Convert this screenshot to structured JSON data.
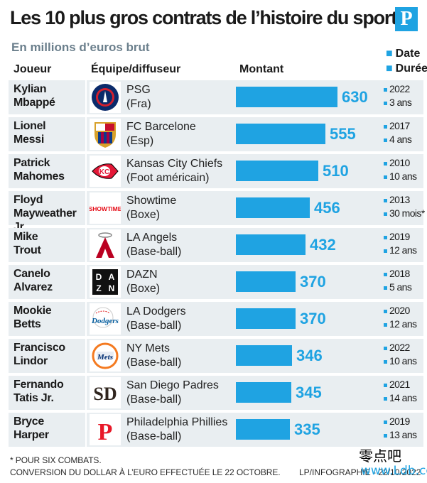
{
  "header": {
    "title": "Les 10 plus gros contrats de l’histoire du sport",
    "logo_letter": "P",
    "subtitle": "En millions d’euros brut",
    "col_player": "Joueur",
    "col_team": "Équipe/diffuseur",
    "col_amount": "Montant",
    "col_date": "Date",
    "col_duration": "Durée"
  },
  "rows": [
    {
      "player1": "Kylian",
      "player2": "Mbappé",
      "team": "PSG",
      "sub": "(Fra)",
      "amount": "630",
      "date": "2022",
      "duration": "3 ans",
      "icon": "psg-logo-icon"
    },
    {
      "player1": "Lionel",
      "player2": "Messi",
      "team": "FC Barcelone",
      "sub": "(Esp)",
      "amount": "555",
      "date": "2017",
      "duration": "4 ans",
      "icon": "fc-barcelona-logo-icon"
    },
    {
      "player1": "Patrick",
      "player2": "Mahomes",
      "team": "Kansas City Chiefs",
      "sub": "(Foot américain)",
      "amount": "510",
      "date": "2010",
      "duration": "10 ans",
      "icon": "kc-chiefs-logo-icon"
    },
    {
      "player1": "Floyd",
      "player2": "Mayweather Jr.",
      "team": "Showtime",
      "sub": "(Boxe)",
      "amount": "456",
      "date": "2013",
      "duration": "30 mois*",
      "icon": "showtime-logo-icon",
      "logo_text": "SHOWTIME"
    },
    {
      "player1": "Mike",
      "player2": "Trout",
      "team": "LA Angels",
      "sub": "(Base-ball)",
      "amount": "432",
      "date": "2019",
      "duration": "12 ans",
      "icon": "la-angels-logo-icon",
      "logo_text": "A"
    },
    {
      "player1": "Canelo",
      "player2": "Alvarez",
      "team": "DAZN",
      "sub": "(Boxe)",
      "amount": "370",
      "date": "2018",
      "duration": "5 ans",
      "icon": "dazn-logo-icon",
      "logo_text": "DAZN"
    },
    {
      "player1": "Mookie",
      "player2": "Betts",
      "team": "LA Dodgers",
      "sub": "(Base-ball)",
      "amount": "370",
      "date": "2020",
      "duration": "12 ans",
      "icon": "la-dodgers-logo-icon",
      "logo_text": "Dodgers"
    },
    {
      "player1": "Francisco",
      "player2": "Lindor",
      "team": "NY Mets",
      "sub": "(Base-ball)",
      "amount": "346",
      "date": "2022",
      "duration": "10 ans",
      "icon": "ny-mets-logo-icon",
      "logo_text": "Mets"
    },
    {
      "player1": "Fernando",
      "player2": "Tatis Jr.",
      "team": "San Diego Padres",
      "sub": "(Base-ball)",
      "amount": "345",
      "date": "2021",
      "duration": "14 ans",
      "icon": "sd-padres-logo-icon",
      "logo_text": "SD"
    },
    {
      "player1": "Bryce",
      "player2": "Harper",
      "team": "Philadelphia Phillies",
      "sub": "(Base-ball)",
      "amount": "335",
      "date": "2019",
      "duration": "13 ans",
      "icon": "phillies-logo-icon",
      "logo_text": "P"
    }
  ],
  "chart_data": {
    "type": "bar",
    "title": "Les 10 plus gros contrats de l’histoire du sport",
    "subtitle": "En millions d’euros brut",
    "categories": [
      "Kylian Mbappé",
      "Lionel Messi",
      "Patrick Mahomes",
      "Floyd Mayweather Jr.",
      "Mike Trout",
      "Canelo Alvarez",
      "Mookie Betts",
      "Francisco Lindor",
      "Fernando Tatis Jr.",
      "Bryce Harper"
    ],
    "values": [
      630,
      555,
      510,
      456,
      432,
      370,
      370,
      346,
      345,
      335
    ],
    "orientation": "horizontal",
    "bar_color": "#1fa3e2",
    "grid": false
  },
  "footer": {
    "note1": "* POUR SIX COMBATS.",
    "note2": "CONVERSION DU DOLLAR À L’EURO EFFECTUÉE LE 22 OCTOBRE.",
    "credit": "LP/INFOGRAPHIE - 22/10/2022",
    "watermark1": "零点吧",
    "watermark2": "www.Ldb.cc"
  },
  "colors": {
    "accent": "#1fa3e2",
    "row_bg": "#e9eef1",
    "subtitle": "#6b7f8c"
  }
}
